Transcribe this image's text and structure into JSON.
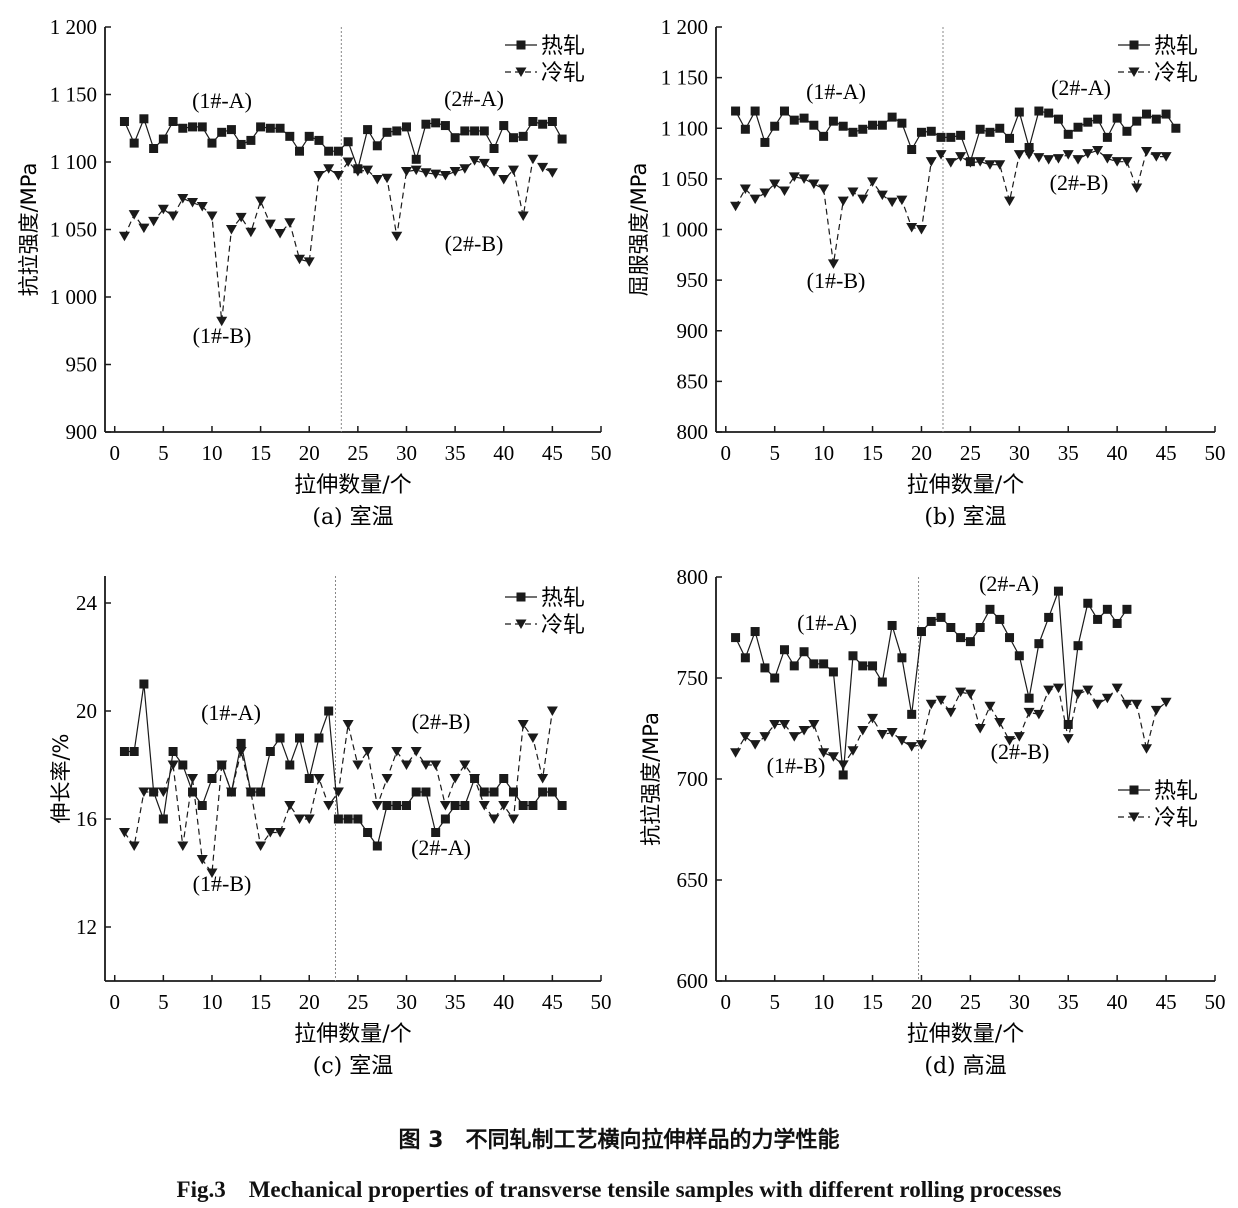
{
  "figure": {
    "caption_cn": "图 3　不同轧制工艺横向拉伸样品的力学性能",
    "caption_en": "Fig.3　Mechanical properties of transverse tensile samples with different rolling processes"
  },
  "colors": {
    "line": "#1a1a1a",
    "divider": "#888888"
  },
  "chart_data": [
    {
      "id": "a",
      "type": "line",
      "caption": "(a) 室温",
      "xlabel": "拉伸数量/个",
      "ylabel": "抗拉强度/MPa",
      "xlim": [
        -1,
        50
      ],
      "ylim": [
        900,
        1200
      ],
      "xticks": [
        0,
        5,
        10,
        15,
        20,
        25,
        30,
        35,
        40,
        45,
        50
      ],
      "yticks": [
        900,
        950,
        1000,
        1050,
        1100,
        1150,
        1200
      ],
      "ytick_labels": [
        "900",
        "950",
        "1 000",
        "1 050",
        "1 100",
        "1 150",
        "1 200"
      ],
      "divider_x": 23.3,
      "legend": "top-right",
      "annotations": [
        "(1#-A)",
        "(2#-A)",
        "(1#-B)",
        "(2#-B)"
      ],
      "series": [
        {
          "name": "热轧",
          "marker": "square",
          "dash": false,
          "values": [
            1130,
            1114,
            1132,
            1110,
            1117,
            1130,
            1125,
            1126,
            1126,
            1114,
            1122,
            1124,
            1113,
            1116,
            1126,
            1125,
            1125,
            1119,
            1108,
            1119,
            1116,
            1108,
            1108,
            1115,
            1095,
            1124,
            1112,
            1122,
            1123,
            1126,
            1102,
            1128,
            1129,
            1127,
            1118,
            1123,
            1123,
            1123,
            1110,
            1127,
            1118,
            1119,
            1130,
            1128,
            1130,
            1117
          ]
        },
        {
          "name": "冷轧",
          "marker": "triangle",
          "dash": true,
          "values": [
            1045,
            1061,
            1051,
            1056,
            1065,
            1060,
            1073,
            1070,
            1067,
            1060,
            982,
            1050,
            1059,
            1048,
            1071,
            1054,
            1047,
            1055,
            1028,
            1026,
            1090,
            1095,
            1090,
            1100,
            1093,
            1094,
            1087,
            1088,
            1045,
            1093,
            1094,
            1092,
            1091,
            1090,
            1093,
            1095,
            1101,
            1099,
            1093,
            1087,
            1094,
            1060,
            1102,
            1096,
            1092
          ]
        }
      ]
    },
    {
      "id": "b",
      "type": "line",
      "caption": "(b) 室温",
      "xlabel": "拉伸数量/个",
      "ylabel": "屈服强度/MPa",
      "xlim": [
        -1,
        50
      ],
      "ylim": [
        800,
        1200
      ],
      "xticks": [
        0,
        5,
        10,
        15,
        20,
        25,
        30,
        35,
        40,
        45,
        50
      ],
      "yticks": [
        800,
        850,
        900,
        950,
        1000,
        1050,
        1100,
        1150,
        1200
      ],
      "ytick_labels": [
        "800",
        "850",
        "900",
        "950",
        "1 000",
        "1 050",
        "1 100",
        "1 150",
        "1 200"
      ],
      "divider_x": 22.2,
      "legend": "top-right",
      "annotations": [
        "(1#-A)",
        "(2#-A)",
        "(1#-B)",
        "(2#-B)"
      ],
      "series": [
        {
          "name": "热轧",
          "marker": "square",
          "dash": false,
          "values": [
            1117,
            1099,
            1117,
            1086,
            1102,
            1117,
            1108,
            1110,
            1103,
            1092,
            1107,
            1102,
            1096,
            1099,
            1103,
            1103,
            1111,
            1105,
            1079,
            1096,
            1097,
            1091,
            1091,
            1093,
            1067,
            1099,
            1096,
            1100,
            1090,
            1116,
            1081,
            1117,
            1115,
            1109,
            1094,
            1101,
            1106,
            1109,
            1091,
            1110,
            1097,
            1107,
            1114,
            1109,
            1114,
            1100
          ]
        },
        {
          "name": "冷轧",
          "marker": "triangle",
          "dash": true,
          "values": [
            1023,
            1040,
            1030,
            1036,
            1045,
            1038,
            1052,
            1050,
            1045,
            1040,
            966,
            1028,
            1037,
            1030,
            1047,
            1034,
            1027,
            1029,
            1002,
            1000,
            1067,
            1074,
            1066,
            1072,
            1066,
            1067,
            1064,
            1064,
            1028,
            1074,
            1074,
            1071,
            1069,
            1070,
            1074,
            1069,
            1075,
            1078,
            1070,
            1067,
            1067,
            1041,
            1077,
            1072,
            1072
          ]
        }
      ]
    },
    {
      "id": "c",
      "type": "line",
      "caption": "(c) 室温",
      "xlabel": "拉伸数量/个",
      "ylabel": "伸长率/%",
      "xlim": [
        -1,
        50
      ],
      "ylim": [
        10,
        25
      ],
      "xticks": [
        0,
        5,
        10,
        15,
        20,
        25,
        30,
        35,
        40,
        45,
        50
      ],
      "yticks": [
        12,
        16,
        20,
        24
      ],
      "ytick_labels": [
        "12",
        "16",
        "20",
        "24"
      ],
      "divider_x": 22.7,
      "legend": "top-right",
      "annotations": [
        "(1#-A)",
        "(2#-B)",
        "(1#-B)",
        "(2#-A)"
      ],
      "series": [
        {
          "name": "热轧",
          "marker": "square",
          "dash": false,
          "values": [
            18.5,
            18.5,
            21,
            17,
            16,
            18.5,
            18,
            17,
            16.5,
            17.5,
            18,
            17,
            18.8,
            17,
            17,
            18.5,
            19,
            18,
            19,
            17.5,
            19,
            20,
            16,
            16,
            16,
            15.5,
            15,
            16.5,
            16.5,
            16.5,
            17,
            17,
            15.5,
            16,
            16.5,
            16.5,
            17.5,
            17,
            17,
            17.5,
            17,
            16.5,
            16.5,
            17,
            17,
            16.5
          ]
        },
        {
          "name": "冷轧",
          "marker": "triangle",
          "dash": true,
          "values": [
            15.5,
            15,
            17,
            17,
            17,
            18,
            15,
            17.5,
            14.5,
            14,
            18,
            17,
            18.5,
            17,
            15,
            15.5,
            15.5,
            16.5,
            16,
            16,
            17.5,
            16.5,
            17,
            19.5,
            18,
            18.5,
            16.5,
            17.5,
            18.5,
            18,
            18.5,
            18,
            18,
            16.5,
            17.5,
            18,
            17.5,
            16.5,
            16,
            16.5,
            16,
            19.5,
            19,
            17.5,
            20
          ]
        }
      ]
    },
    {
      "id": "d",
      "type": "line",
      "caption": "(d) 高温",
      "xlabel": "拉伸数量/个",
      "ylabel": "抗拉强度/MPa",
      "xlim": [
        -1,
        50
      ],
      "ylim": [
        600,
        800
      ],
      "xticks": [
        0,
        5,
        10,
        15,
        20,
        25,
        30,
        35,
        40,
        45,
        50
      ],
      "yticks": [
        600,
        650,
        700,
        750,
        800
      ],
      "ytick_labels": [
        "600",
        "650",
        "700",
        "750",
        "800"
      ],
      "divider_x": 19.7,
      "legend": "right",
      "annotations": [
        "(1#-A)",
        "(2#-A)",
        "(1#-B)",
        "(2#-B)"
      ],
      "series": [
        {
          "name": "热轧",
          "marker": "square",
          "dash": false,
          "values": [
            770,
            760,
            773,
            755,
            750,
            764,
            756,
            763,
            757,
            757,
            753,
            702,
            761,
            756,
            756,
            748,
            776,
            760,
            732,
            773,
            778,
            780,
            775,
            770,
            768,
            775,
            784,
            779,
            770,
            761,
            740,
            767,
            780,
            793,
            727,
            766,
            787,
            779,
            784,
            777,
            784
          ]
        },
        {
          "name": "冷轧",
          "marker": "triangle",
          "dash": true,
          "values": [
            713,
            721,
            717,
            721,
            727,
            727,
            721,
            724,
            727,
            713,
            711,
            707,
            714,
            724,
            730,
            722,
            723,
            719,
            716,
            717,
            737,
            739,
            733,
            743,
            742,
            725,
            736,
            728,
            719,
            721,
            733,
            732,
            744,
            745,
            720,
            742,
            744,
            737,
            740,
            745,
            737,
            737,
            715,
            734,
            738
          ]
        }
      ]
    }
  ]
}
